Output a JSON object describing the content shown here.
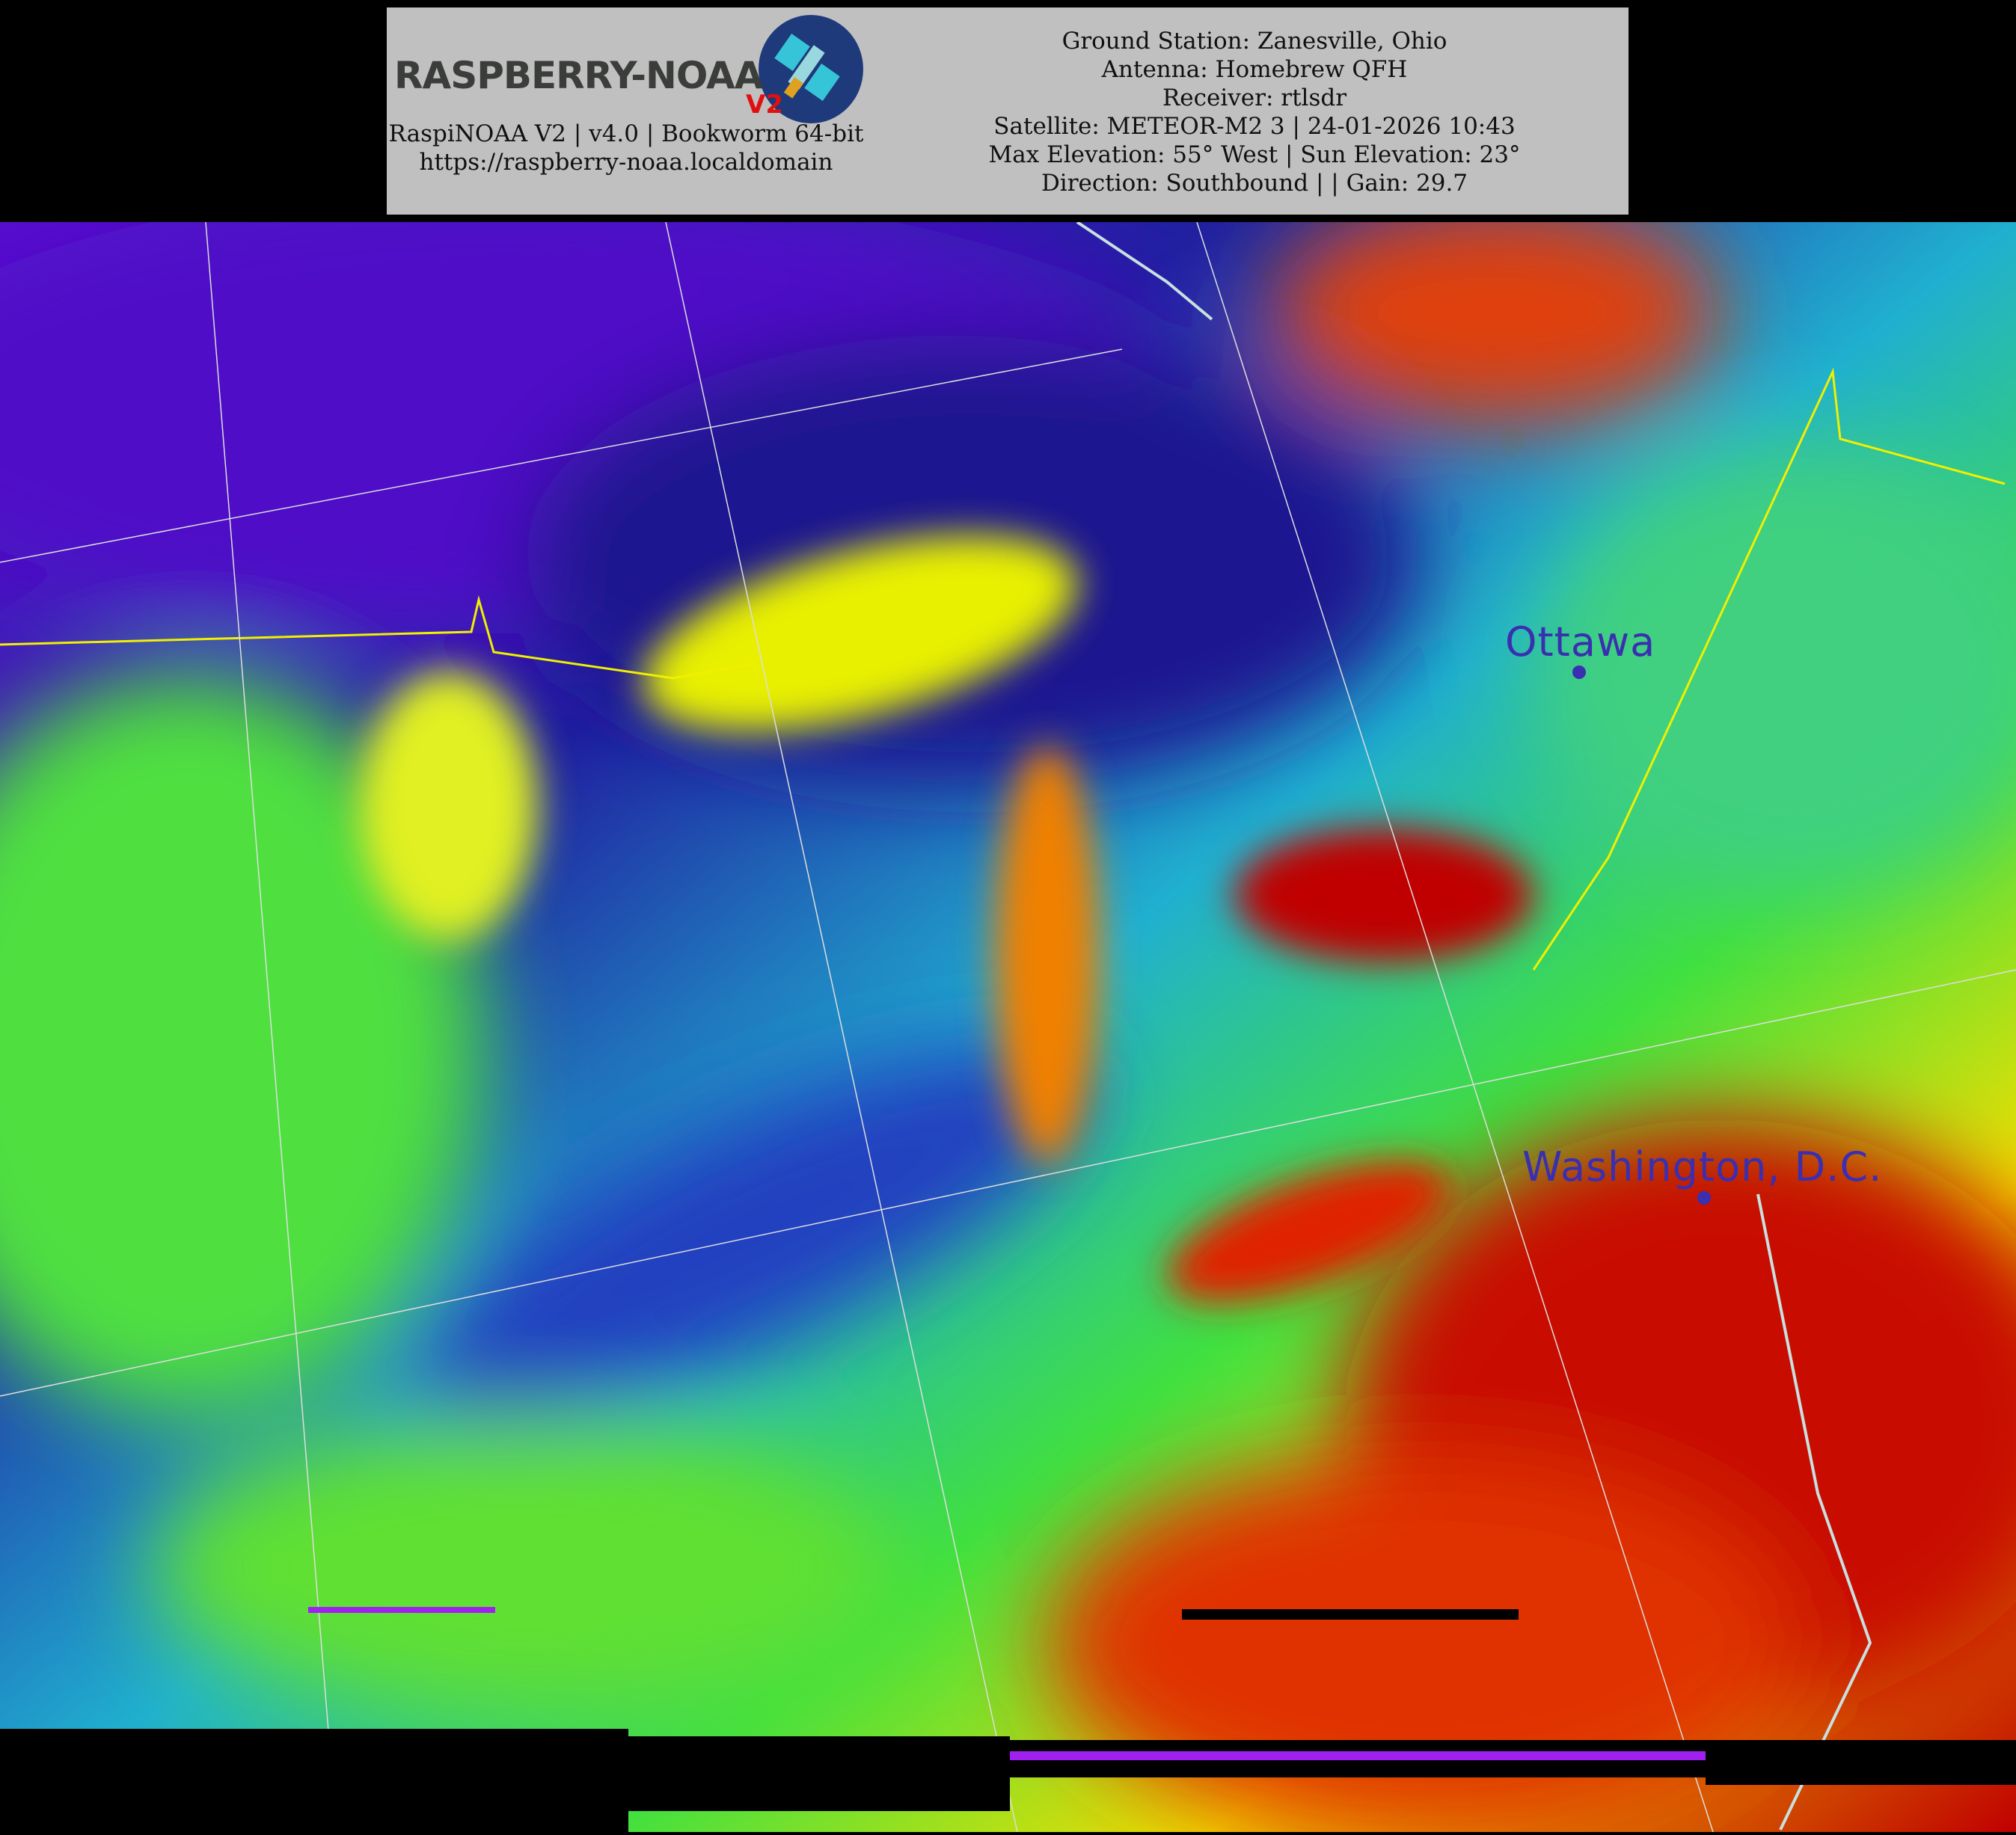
{
  "header": {
    "logo": {
      "text": "RASPBERRY-NOAA",
      "badge": "V2"
    },
    "software_line": "RaspiNOAA V2 | v4.0 | Bookworm 64-bit",
    "url": "https://raspberry-noaa.localdomain",
    "pass_info": [
      "Ground Station: Zanesville, Ohio",
      "Antenna: Homebrew QFH",
      "Receiver: rtlsdr",
      "Satellite: METEOR-M2 3 | 24-01-2026 10:43",
      "Max Elevation: 55° West | Sun Elevation: 23°",
      "Direction: Southbound | | Gain: 29.7"
    ]
  },
  "map": {
    "cities": [
      {
        "name": "Ottawa"
      },
      {
        "name": "Washington, D.C."
      }
    ],
    "colors": {
      "cold": "#6a00d8",
      "mid": "#30e050",
      "warm": "#f0f000",
      "hot": "#c00000",
      "label": "#3a2fb0",
      "border": "#f0f000",
      "coast": "#c8e0e0"
    }
  }
}
